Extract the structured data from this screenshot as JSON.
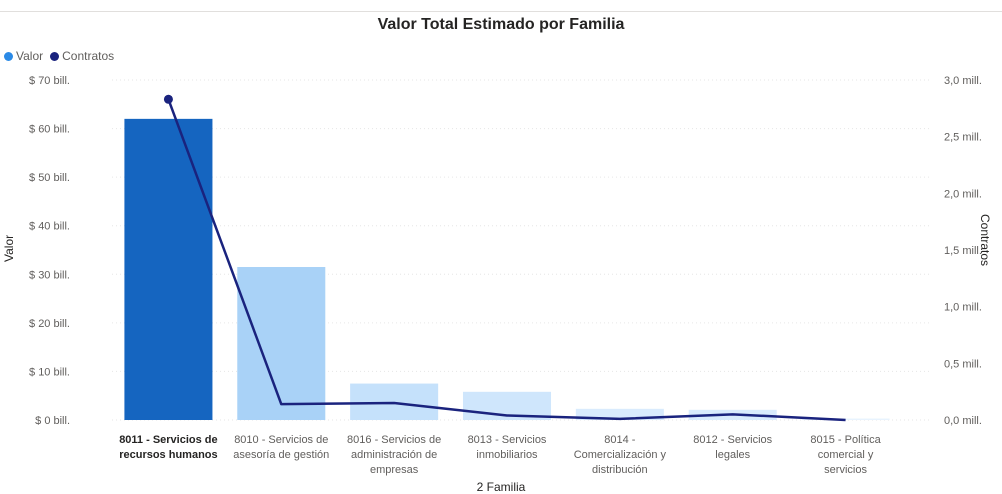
{
  "chart_data": {
    "type": "bar",
    "title": "Valor Total Estimado por Familia",
    "xlabel": "2 Familia",
    "ylabel": "Valor",
    "y2label": "Contratos",
    "legend_position": "top-left",
    "grid": true,
    "categories": [
      [
        "8011 - Servicios de",
        "recursos humanos"
      ],
      [
        "8010 - Servicios de",
        "asesoría de gestión"
      ],
      [
        "8016 - Servicios de",
        "administración de",
        "empresas"
      ],
      [
        "8013 - Servicios",
        "inmobiliarios"
      ],
      [
        "8014 -",
        "Comercialización y",
        "distribución"
      ],
      [
        "8012 - Servicios",
        "legales"
      ],
      [
        "8015 - Política",
        "comercial y",
        "servicios"
      ]
    ],
    "y_ticks": [
      "$ 0 bill.",
      "$ 10 bill.",
      "$ 20 bill.",
      "$ 30 bill.",
      "$ 40 bill.",
      "$ 50 bill.",
      "$ 60 bill.",
      "$ 70 bill."
    ],
    "y_tick_values": [
      0,
      10,
      20,
      30,
      40,
      50,
      60,
      70
    ],
    "y2_ticks": [
      "0,0 mill.",
      "0,5 mill.",
      "1,0 mill.",
      "1,5 mill.",
      "2,0 mill.",
      "2,5 mill.",
      "3,0 mill."
    ],
    "y2_tick_values": [
      0,
      0.5,
      1.0,
      1.5,
      2.0,
      2.5,
      3.0
    ],
    "ylim": [
      0,
      70
    ],
    "y2lim": [
      0,
      3.0
    ],
    "series": [
      {
        "name": "Valor",
        "kind": "bar",
        "unit": "bill.",
        "values": [
          62,
          31.5,
          7.5,
          5.8,
          2.3,
          2.1,
          0.3
        ],
        "colors": [
          "#1565c0",
          "#a9d2f7",
          "#c5e1fb",
          "#cfe6fc",
          "#d9ebfd",
          "#d9ebfd",
          "#e8f3fe"
        ]
      },
      {
        "name": "Contratos",
        "kind": "line",
        "unit": "mill.",
        "values": [
          2.83,
          0.14,
          0.15,
          0.04,
          0.01,
          0.05,
          0.0
        ],
        "color": "#1a237e"
      }
    ],
    "legend": [
      {
        "label": "Valor",
        "color": "#2b8ae6"
      },
      {
        "label": "Contratos",
        "color": "#1a237e"
      }
    ]
  }
}
